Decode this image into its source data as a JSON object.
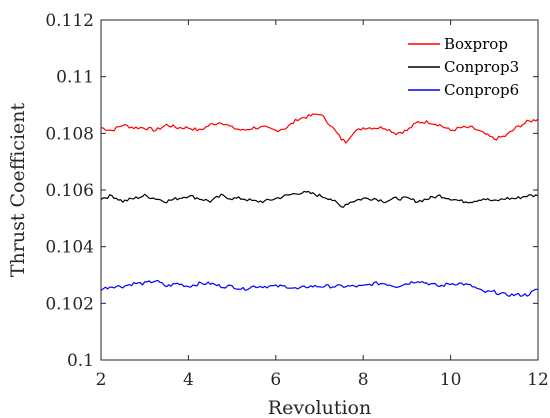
{
  "chart_data": {
    "type": "line",
    "xlabel": "Revolution",
    "ylabel": "Thrust Coefficient",
    "xlim": [
      2,
      12
    ],
    "ylim": [
      0.1,
      0.112
    ],
    "xticks": [
      2,
      4,
      6,
      8,
      10,
      12
    ],
    "xtick_labels": [
      "2",
      "4",
      "6",
      "8",
      "10",
      "12"
    ],
    "yticks": [
      0.1,
      0.102,
      0.104,
      0.106,
      0.108,
      0.11,
      0.112
    ],
    "ytick_labels": [
      "0.1",
      "0.102",
      "0.104",
      "0.106",
      "0.108",
      "0.11",
      "0.112"
    ],
    "grid": false,
    "legend_position": "top-right",
    "x": [
      2.0,
      2.25,
      2.5,
      2.75,
      3.0,
      3.25,
      3.5,
      3.75,
      4.0,
      4.25,
      4.5,
      4.75,
      5.0,
      5.25,
      5.5,
      5.75,
      6.0,
      6.25,
      6.5,
      6.75,
      7.0,
      7.25,
      7.5,
      7.6,
      7.75,
      8.0,
      8.25,
      8.5,
      8.75,
      9.0,
      9.25,
      9.5,
      9.75,
      10.0,
      10.25,
      10.5,
      10.75,
      11.0,
      11.25,
      11.5,
      11.75,
      12.0
    ],
    "series": [
      {
        "name": "Boxprop",
        "color": "#ff0000",
        "values": [
          0.1082,
          0.1081,
          0.1083,
          0.1082,
          0.1082,
          0.1081,
          0.1083,
          0.1082,
          0.1082,
          0.1081,
          0.1083,
          0.1084,
          0.1082,
          0.1081,
          0.1082,
          0.1082,
          0.1081,
          0.1082,
          0.1085,
          0.1086,
          0.1087,
          0.1083,
          0.1078,
          0.1077,
          0.108,
          0.1082,
          0.1082,
          0.1082,
          0.108,
          0.1081,
          0.1084,
          0.1084,
          0.1083,
          0.1081,
          0.1082,
          0.1082,
          0.108,
          0.1078,
          0.1079,
          0.1082,
          0.1084,
          0.1085
        ]
      },
      {
        "name": "Conprop3",
        "color": "#000000",
        "values": [
          0.1057,
          0.1058,
          0.1056,
          0.1057,
          0.1058,
          0.1057,
          0.1056,
          0.1057,
          0.1058,
          0.1057,
          0.1056,
          0.1058,
          0.1057,
          0.1057,
          0.1056,
          0.1056,
          0.1057,
          0.1058,
          0.1059,
          0.1059,
          0.1058,
          0.1057,
          0.1054,
          0.1055,
          0.1056,
          0.1057,
          0.1057,
          0.1056,
          0.1057,
          0.1057,
          0.1056,
          0.1057,
          0.1058,
          0.1057,
          0.1056,
          0.1056,
          0.1057,
          0.1056,
          0.1057,
          0.1057,
          0.1058,
          0.1058
        ]
      },
      {
        "name": "Conprop6",
        "color": "#0000ff",
        "values": [
          0.1025,
          0.1026,
          0.1026,
          0.1027,
          0.1027,
          0.1028,
          0.1026,
          0.1027,
          0.1026,
          0.1027,
          0.1027,
          0.1026,
          0.1026,
          0.1025,
          0.1026,
          0.1026,
          0.1026,
          0.1026,
          0.1025,
          0.1026,
          0.1026,
          0.1026,
          0.1026,
          0.1026,
          0.1026,
          0.1026,
          0.1027,
          0.1027,
          0.1026,
          0.1027,
          0.1028,
          0.1027,
          0.1026,
          0.1027,
          0.1027,
          0.1026,
          0.1024,
          0.1024,
          0.1023,
          0.1023,
          0.1023,
          0.1025
        ]
      }
    ]
  }
}
